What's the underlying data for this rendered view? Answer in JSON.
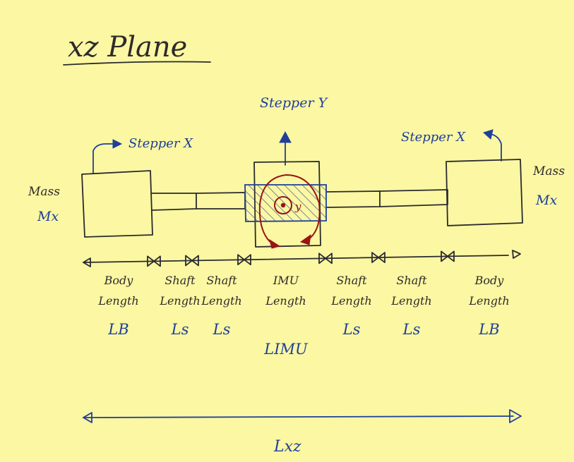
{
  "title": "xz Plane",
  "stepper_y": "Stepper Y",
  "stepper_x_left": "Stepper X",
  "stepper_x_right": "Stepper X",
  "mass_left": {
    "label": "Mass",
    "symbol": "Mx"
  },
  "mass_right": {
    "label": "Mass",
    "symbol": "Mx"
  },
  "imu_axis": "y",
  "segments": [
    {
      "line1": "Body",
      "line2": "Length",
      "symbol": "LB"
    },
    {
      "line1": "Shaft",
      "line2": "Length",
      "symbol": "Ls"
    },
    {
      "line1": "Shaft",
      "line2": "Length",
      "symbol": "Ls"
    },
    {
      "line1": "IMU",
      "line2": "Length",
      "symbol": "LIMU"
    },
    {
      "line1": "Shaft",
      "line2": "Length",
      "symbol": "Ls"
    },
    {
      "line1": "Shaft",
      "line2": "Length",
      "symbol": "Ls"
    },
    {
      "line1": "Body",
      "line2": "Length",
      "symbol": "LB"
    }
  ],
  "total_length": "Lxz"
}
